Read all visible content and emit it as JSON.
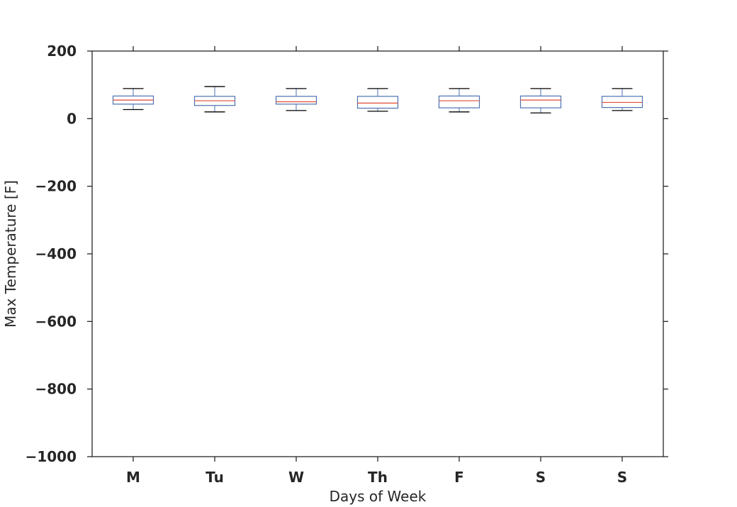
{
  "chart_data": {
    "type": "box",
    "xlabel": "Days of Week",
    "ylabel": "Max Temperature [F]",
    "ylim": [
      -1000,
      200
    ],
    "yticks": [
      {
        "value": 200,
        "label": "200"
      },
      {
        "value": 0,
        "label": "0"
      },
      {
        "value": -200,
        "label": "−200"
      },
      {
        "value": -400,
        "label": "−400"
      },
      {
        "value": -600,
        "label": "−600"
      },
      {
        "value": -800,
        "label": "−800"
      },
      {
        "value": -1000,
        "label": "−1000"
      }
    ],
    "categories": [
      "M",
      "Tu",
      "W",
      "Th",
      "F",
      "S",
      "S"
    ],
    "boxes": [
      {
        "whisker_low": 27,
        "q1": 43,
        "median": 55,
        "q3": 67,
        "whisker_high": 89
      },
      {
        "whisker_low": 20,
        "q1": 39,
        "median": 53,
        "q3": 66,
        "whisker_high": 95
      },
      {
        "whisker_low": 24,
        "q1": 43,
        "median": 50,
        "q3": 66,
        "whisker_high": 89
      },
      {
        "whisker_low": 22,
        "q1": 31,
        "median": 46,
        "q3": 66,
        "whisker_high": 89
      },
      {
        "whisker_low": 20,
        "q1": 32,
        "median": 53,
        "q3": 67,
        "whisker_high": 89
      },
      {
        "whisker_low": 17,
        "q1": 32,
        "median": 55,
        "q3": 67,
        "whisker_high": 89
      },
      {
        "whisker_low": 24,
        "q1": 33,
        "median": 48,
        "q3": 66,
        "whisker_high": 89
      }
    ],
    "grid": false,
    "colors": {
      "box": "#4c72b0",
      "median": "#e24a33",
      "whisker_cap": "#000000",
      "axis": "#262626",
      "text": "#262626"
    }
  }
}
